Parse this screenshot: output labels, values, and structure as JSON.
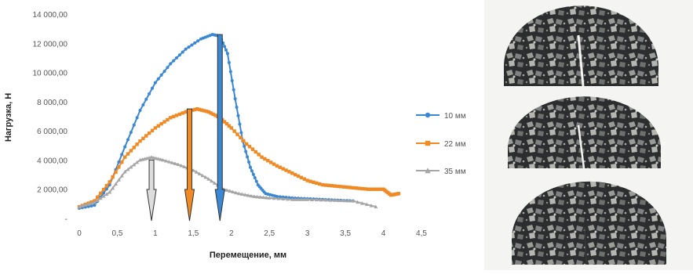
{
  "chart_data": {
    "type": "line",
    "title": "",
    "xlabel": "Перемещение, мм",
    "ylabel": "Нагрузка, Н",
    "xlim": [
      0,
      4.5
    ],
    "ylim": [
      0,
      14000
    ],
    "x_ticks": [
      "0",
      "0,5",
      "1",
      "1,5",
      "2",
      "2,5",
      "3",
      "3,5",
      "4",
      "4,5"
    ],
    "y_ticks": [
      "-",
      "2 000,00",
      "4 000,00",
      "6 000,00",
      "8 000,00",
      "10 000,00",
      "12 000,00",
      "14 000,00"
    ],
    "grid": false,
    "legend_position": "right",
    "series": [
      {
        "name": "10 мм",
        "color": "#3a87d4",
        "marker": "circle",
        "x": [
          0,
          0.2,
          0.4,
          0.6,
          0.8,
          1.0,
          1.2,
          1.4,
          1.6,
          1.75,
          1.85,
          1.95,
          2.05,
          2.15,
          2.25,
          2.35,
          2.45,
          2.6,
          2.8,
          3.0,
          3.2,
          3.4,
          3.6
        ],
        "y": [
          700,
          900,
          2300,
          4900,
          7400,
          9300,
          10600,
          11600,
          12300,
          12600,
          12500,
          11300,
          8200,
          5300,
          3500,
          2300,
          1700,
          1500,
          1400,
          1350,
          1300,
          1250,
          1200
        ]
      },
      {
        "name": "22 мм",
        "color": "#f08a24",
        "marker": "square",
        "x": [
          0,
          0.2,
          0.4,
          0.6,
          0.8,
          1.0,
          1.2,
          1.4,
          1.55,
          1.7,
          1.85,
          2.0,
          2.2,
          2.4,
          2.6,
          2.8,
          3.0,
          3.2,
          3.4,
          3.6,
          3.8,
          4.0,
          4.1,
          4.2
        ],
        "y": [
          800,
          1200,
          2500,
          4200,
          5300,
          6200,
          6900,
          7300,
          7500,
          7300,
          6900,
          6200,
          5100,
          4200,
          3600,
          3100,
          2600,
          2300,
          2200,
          2100,
          2000,
          2000,
          1600,
          1700
        ]
      },
      {
        "name": "35 мм",
        "color": "#a6a6a6",
        "marker": "triangle",
        "x": [
          0,
          0.2,
          0.4,
          0.6,
          0.8,
          0.95,
          1.1,
          1.3,
          1.5,
          1.7,
          1.9,
          2.1,
          2.3,
          2.5,
          2.8,
          3.0,
          3.3,
          3.6,
          3.9
        ],
        "y": [
          800,
          1100,
          1800,
          3200,
          4000,
          4200,
          4000,
          3700,
          3300,
          2700,
          2000,
          1700,
          1500,
          1400,
          1300,
          1300,
          1250,
          1200,
          800
        ]
      }
    ],
    "annotations": [
      {
        "type": "arrow-down",
        "x": 1.85,
        "y_top": 12600,
        "color": "#3a87d4"
      },
      {
        "type": "arrow-down",
        "x": 1.45,
        "y_top": 7500,
        "color": "#f08a24"
      },
      {
        "type": "arrow-down",
        "x": 0.95,
        "y_top": 4000,
        "color": "#dddddd"
      }
    ]
  },
  "photo": {
    "description_icon": "asphalt-specimen-photo",
    "specimen_count": 3
  }
}
